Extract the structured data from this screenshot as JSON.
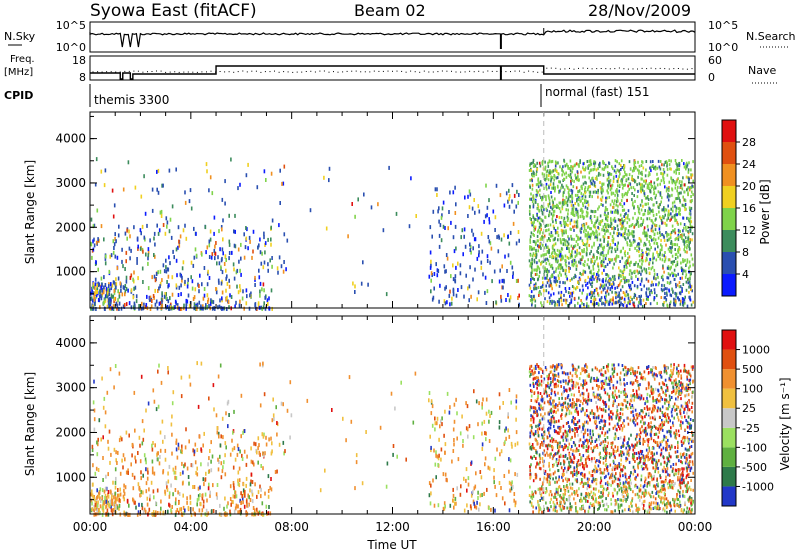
{
  "header": {
    "title": "Syowa East (fitACF)",
    "beam": "Beam 02",
    "date": "28/Nov/2009"
  },
  "params_panel": {
    "nsky_label": "N.Sky",
    "nsky_ticks": [
      "10^5",
      "10^0"
    ],
    "nsearch_label": "N.Search",
    "nsearch_ticks": [
      "10^5",
      "10^0"
    ],
    "freq_label_1": "Freq.",
    "freq_label_2": "[MHz]",
    "freq_ticks": [
      "18",
      "8"
    ],
    "nave_label": "Nave",
    "nave_ticks": [
      "60",
      "0"
    ],
    "cpid_label": "CPID",
    "cpid_segments": [
      {
        "label": "themis 3300",
        "start_hour": 0
      },
      {
        "label": "normal (fast) 151",
        "start_hour": 18
      }
    ]
  },
  "chart_data": [
    {
      "type": "heatmap",
      "name": "power",
      "ylabel": "Slant Range [km]",
      "yticks": [
        "1000",
        "2000",
        "3000",
        "4000"
      ],
      "ylim": [
        180,
        4600
      ],
      "xlim_hours": [
        0,
        24
      ],
      "colorbar_label": "Power [dB]",
      "colorbar_ticks": [
        "4",
        "8",
        "12",
        "16",
        "20",
        "24",
        "28"
      ],
      "colorbar_range": [
        0,
        30
      ],
      "colors": [
        "#0b1bff",
        "#2a4fb0",
        "#3c8c5c",
        "#7fd34a",
        "#f0d020",
        "#f09020",
        "#e05010",
        "#e01010"
      ],
      "mode_change_hour": 18
    },
    {
      "type": "heatmap",
      "name": "velocity",
      "ylabel": "Slant Range [km]",
      "yticks": [
        "1000",
        "2000",
        "3000",
        "4000"
      ],
      "ylim": [
        180,
        4600
      ],
      "xlim_hours": [
        0,
        24
      ],
      "colorbar_label": "Velocity [m s⁻¹]",
      "colorbar_ticks": [
        "1000",
        "500",
        "100",
        "25",
        "-25",
        "-100",
        "-500",
        "-1000"
      ],
      "colorbar_range": [
        -1000,
        1000
      ],
      "colors": [
        "#2238c8",
        "#2e7a4a",
        "#5fb040",
        "#9be060",
        "#c8c8c8",
        "#f0c040",
        "#f09030",
        "#e05010",
        "#e01010"
      ],
      "xticks": [
        "00:00",
        "04:00",
        "08:00",
        "12:00",
        "16:00",
        "20:00",
        "00:00"
      ],
      "xlabel": "Time UT"
    }
  ],
  "footer": {
    "xlabel": "Time UT",
    "xticks": [
      "00:00",
      "04:00",
      "08:00",
      "12:00",
      "16:00",
      "20:00",
      "00:00"
    ]
  }
}
